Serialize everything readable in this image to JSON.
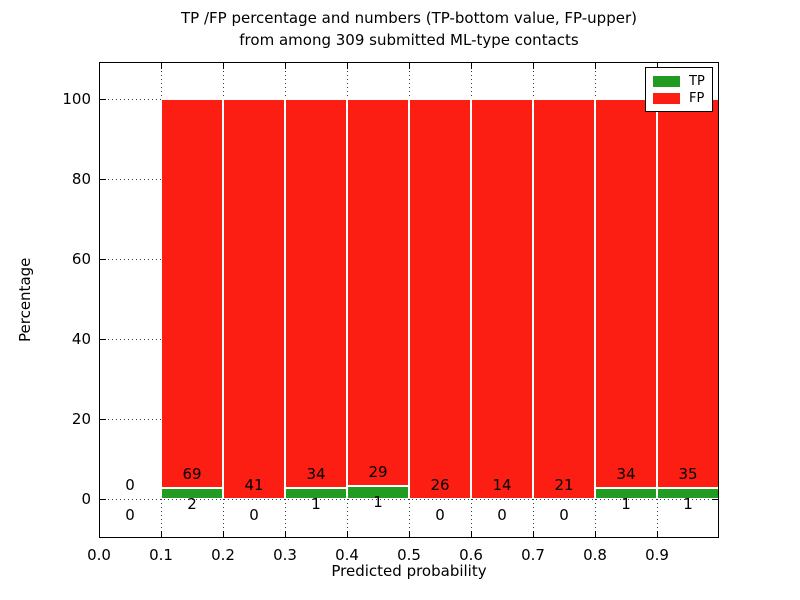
{
  "title": {
    "line1": "TP /FP percentage and numbers (TP-bottom value, FP-upper)",
    "line2": "from among 309 submitted ML-type contacts"
  },
  "axes": {
    "xlabel": "Predicted probability",
    "ylabel": "Percentage",
    "xtick_labels": [
      "0.0",
      "0.1",
      "0.2",
      "0.3",
      "0.4",
      "0.5",
      "0.6",
      "0.7",
      "0.8",
      "0.9"
    ],
    "ytick_labels": [
      "0",
      "20",
      "40",
      "60",
      "80",
      "100"
    ]
  },
  "legend": {
    "items": [
      {
        "label": "TP",
        "color": "#229b22"
      },
      {
        "label": "FP",
        "color": "#fc1d13"
      }
    ],
    "position": "upper right"
  },
  "colors": {
    "tp": "#229b22",
    "fp": "#fc1d13",
    "grid": "#3a3a3a",
    "text": "#000000",
    "background": "#ffffff",
    "bar_edge": "#ffffff",
    "legend_border": "#000000"
  },
  "chart_data": {
    "type": "bar",
    "stacked": true,
    "normalized_to_percent": true,
    "title": "TP /FP percentage and numbers (TP-bottom value, FP-upper) from among 309 submitted ML-type contacts",
    "xlabel": "Predicted probability",
    "ylabel": "Percentage",
    "xlim": [
      0.0,
      1.0
    ],
    "ylim": [
      -9.75,
      109.25
    ],
    "xticks": [
      0.0,
      0.1,
      0.2,
      0.3,
      0.4,
      0.5,
      0.6,
      0.7,
      0.8,
      0.9
    ],
    "yticks": [
      0,
      20,
      40,
      60,
      80,
      100
    ],
    "grid": "dotted",
    "legend_position": "upper right",
    "bin_width": 0.1,
    "total_contacts": 309,
    "series": [
      {
        "name": "TP",
        "counts": [
          0,
          2,
          0,
          1,
          1,
          0,
          0,
          0,
          1,
          1
        ]
      },
      {
        "name": "FP",
        "counts": [
          0,
          69,
          41,
          34,
          29,
          26,
          14,
          21,
          34,
          35
        ]
      }
    ],
    "bins": [
      {
        "x0": 0.0,
        "x1": 0.1,
        "tp": 0,
        "fp": 0
      },
      {
        "x0": 0.1,
        "x1": 0.2,
        "tp": 2,
        "fp": 69
      },
      {
        "x0": 0.2,
        "x1": 0.3,
        "tp": 0,
        "fp": 41
      },
      {
        "x0": 0.3,
        "x1": 0.4,
        "tp": 1,
        "fp": 34
      },
      {
        "x0": 0.4,
        "x1": 0.5,
        "tp": 1,
        "fp": 29
      },
      {
        "x0": 0.5,
        "x1": 0.6,
        "tp": 0,
        "fp": 26
      },
      {
        "x0": 0.6,
        "x1": 0.7,
        "tp": 0,
        "fp": 14
      },
      {
        "x0": 0.7,
        "x1": 0.8,
        "tp": 0,
        "fp": 21
      },
      {
        "x0": 0.8,
        "x1": 0.9,
        "tp": 1,
        "fp": 34
      },
      {
        "x0": 0.9,
        "x1": 1.0,
        "tp": 1,
        "fp": 35
      }
    ]
  }
}
